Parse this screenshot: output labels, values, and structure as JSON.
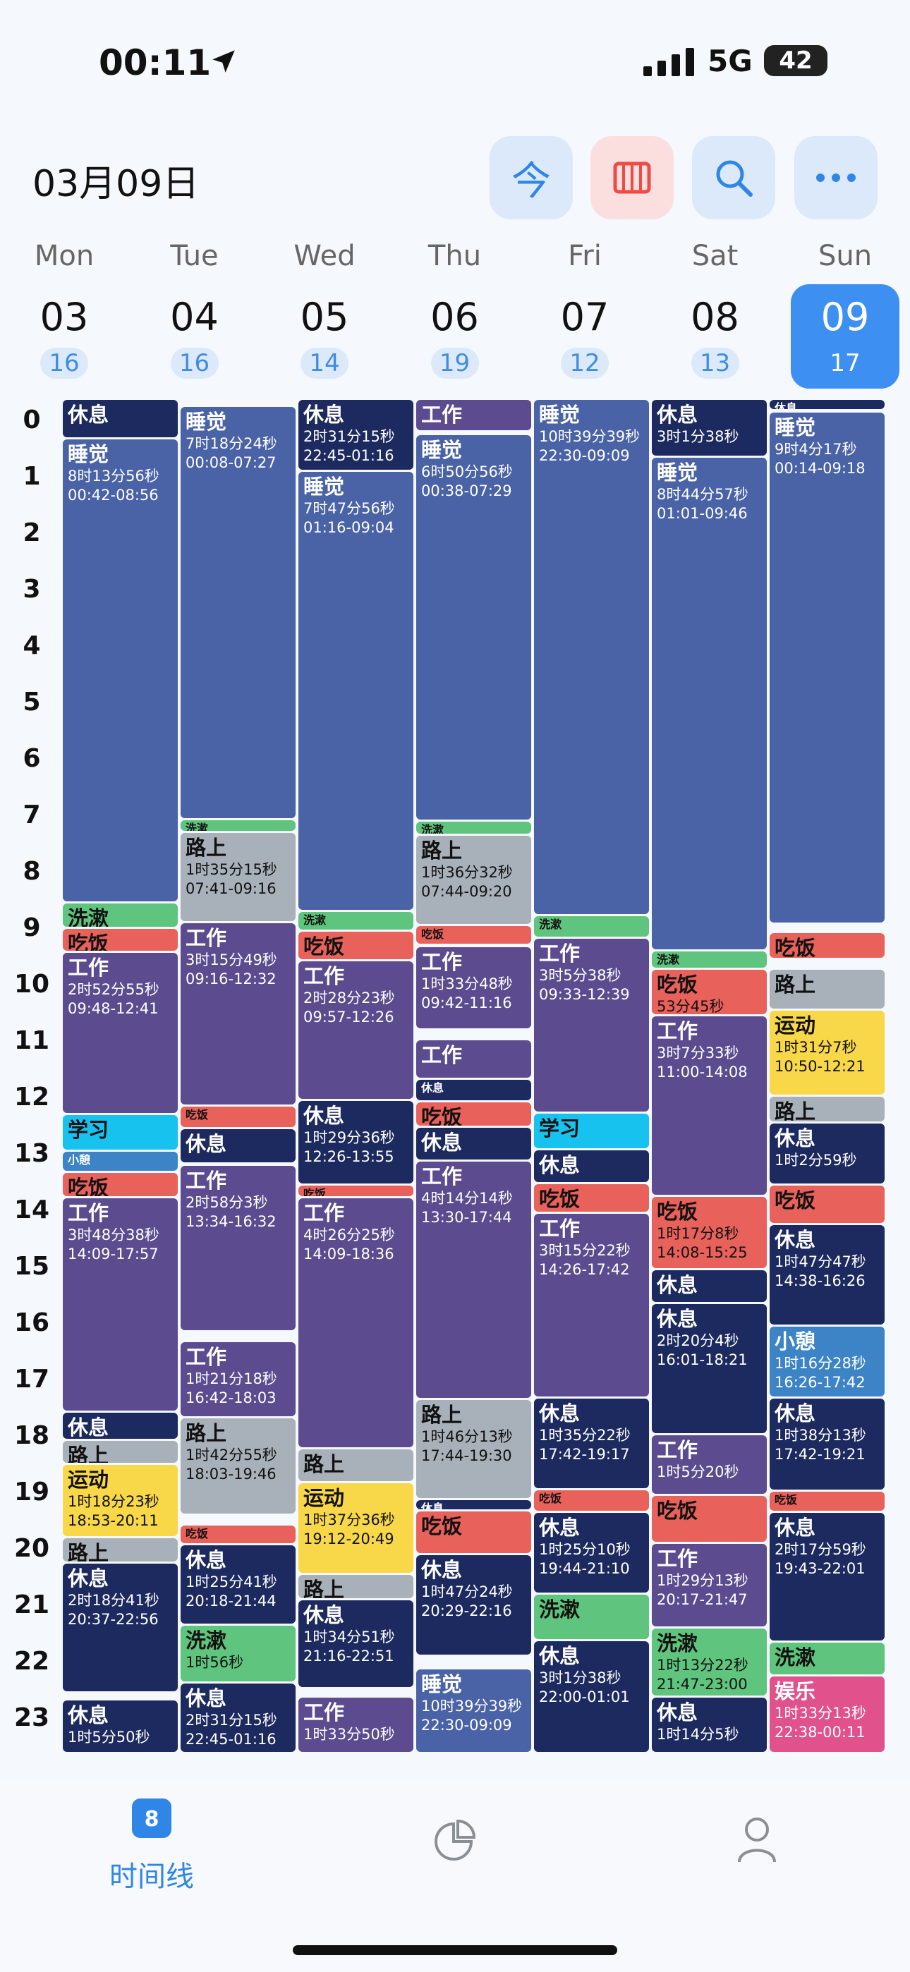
{
  "status": {
    "time": "00:11",
    "network": "5G",
    "battery": "42"
  },
  "header": {
    "date": "03月09日",
    "today_button": "今"
  },
  "selected_day": 6,
  "days": [
    {
      "name": "Mon",
      "date": "03",
      "count": 16,
      "events": [
        {
          "title": "休息",
          "color": "#1d2a5f"
        },
        {
          "title": "睡觉",
          "duration": "8时13分56秒",
          "time": "00:42-08:56",
          "color": "#4a62a6"
        },
        {
          "title": "洗漱",
          "color": "#5fc47d"
        },
        {
          "title": "吃饭",
          "color": "#e9615b"
        },
        {
          "title": "工作",
          "duration": "2时52分55秒",
          "time": "09:48-12:41",
          "color": "#5d4b8f"
        },
        {
          "title": "学习",
          "color": "#17c3ee"
        },
        {
          "title": "小憩",
          "color": "#3d84c6"
        },
        {
          "title": "吃饭",
          "color": "#e9615b"
        },
        {
          "title": "工作",
          "duration": "3时48分38秒",
          "time": "14:09-17:57",
          "color": "#5d4b8f"
        },
        {
          "title": "休息",
          "color": "#1d2a5f"
        },
        {
          "title": "路上",
          "color": "#a8b0b9"
        },
        {
          "title": "运动",
          "duration": "1时18分23秒",
          "time": "18:53-20:11",
          "color": "#f8d848"
        },
        {
          "title": "路上",
          "color": "#a8b0b9"
        },
        {
          "title": "休息",
          "duration": "2时18分41秒",
          "time": "20:37-22:56",
          "color": "#1d2a5f"
        },
        {
          "title": "休息",
          "duration": "1时5分50秒",
          "color": "#1d2a5f"
        }
      ]
    },
    {
      "name": "Tue",
      "date": "04",
      "count": 16,
      "events": [
        {
          "title": "睡觉",
          "duration": "7时18分24秒",
          "time": "00:08-07:27",
          "color": "#4a62a6"
        },
        {
          "title": "洗漱",
          "color": "#5fc47d"
        },
        {
          "title": "路上",
          "duration": "1时35分15秒",
          "time": "07:41-09:16",
          "color": "#a8b0b9"
        },
        {
          "title": "工作",
          "duration": "3时15分49秒",
          "time": "09:16-12:32",
          "color": "#5d4b8f"
        },
        {
          "title": "吃饭",
          "color": "#e9615b"
        },
        {
          "title": "休息",
          "color": "#1d2a5f"
        },
        {
          "title": "工作",
          "duration": "2时58分3秒",
          "time": "13:34-16:32",
          "color": "#5d4b8f"
        },
        {
          "title": "工作",
          "duration": "1时21分18秒",
          "time": "16:42-18:03",
          "color": "#5d4b8f"
        },
        {
          "title": "路上",
          "duration": "1时42分55秒",
          "time": "18:03-19:46",
          "color": "#a8b0b9"
        },
        {
          "title": "吃饭",
          "color": "#e9615b"
        },
        {
          "title": "休息",
          "duration": "1时25分41秒",
          "time": "20:18-21:44",
          "color": "#1d2a5f"
        },
        {
          "title": "洗漱",
          "duration": "1时56秒",
          "color": "#5fc47d"
        },
        {
          "title": "休息",
          "duration": "2时31分15秒",
          "time": "22:45-01:16",
          "color": "#1d2a5f"
        }
      ]
    },
    {
      "name": "Wed",
      "date": "05",
      "count": 14,
      "events": [
        {
          "title": "休息",
          "duration": "2时31分15秒",
          "time": "22:45-01:16",
          "color": "#1d2a5f"
        },
        {
          "title": "睡觉",
          "duration": "7时47分56秒",
          "time": "01:16-09:04",
          "color": "#4a62a6"
        },
        {
          "title": "洗漱",
          "color": "#5fc47d"
        },
        {
          "title": "吃饭",
          "color": "#e9615b"
        },
        {
          "title": "工作",
          "duration": "2时28分23秒",
          "time": "09:57-12:26",
          "color": "#5d4b8f"
        },
        {
          "title": "休息",
          "duration": "1时29分36秒",
          "time": "12:26-13:55",
          "color": "#1d2a5f"
        },
        {
          "title": "吃饭",
          "color": "#e9615b"
        },
        {
          "title": "工作",
          "duration": "4时26分25秒",
          "time": "14:09-18:36",
          "color": "#5d4b8f"
        },
        {
          "title": "路上",
          "color": "#a8b0b9"
        },
        {
          "title": "运动",
          "duration": "1时37分36秒",
          "time": "19:12-20:49",
          "color": "#f8d848"
        },
        {
          "title": "路上",
          "color": "#a8b0b9"
        },
        {
          "title": "休息",
          "duration": "1时34分51秒",
          "time": "21:16-22:51",
          "color": "#1d2a5f"
        },
        {
          "title": "工作",
          "duration": "1时33分50秒",
          "color": "#5d4b8f"
        }
      ]
    },
    {
      "name": "Thu",
      "date": "06",
      "count": 19,
      "events": [
        {
          "title": "工作",
          "color": "#5d4b8f"
        },
        {
          "title": "睡觉",
          "duration": "6时50分56秒",
          "time": "00:38-07:29",
          "color": "#4a62a6"
        },
        {
          "title": "洗漱",
          "color": "#5fc47d"
        },
        {
          "title": "路上",
          "duration": "1时36分32秒",
          "time": "07:44-09:20",
          "color": "#a8b0b9"
        },
        {
          "title": "吃饭",
          "color": "#e9615b"
        },
        {
          "title": "工作",
          "duration": "1时33分48秒",
          "time": "09:42-11:16",
          "color": "#5d4b8f"
        },
        {
          "title": "工作",
          "color": "#5d4b8f"
        },
        {
          "title": "休息",
          "color": "#1d2a5f"
        },
        {
          "title": "吃饭",
          "color": "#e9615b"
        },
        {
          "title": "休息",
          "color": "#1d2a5f"
        },
        {
          "title": "工作",
          "duration": "4时14分14秒",
          "time": "13:30-17:44",
          "color": "#5d4b8f"
        },
        {
          "title": "路上",
          "duration": "1时46分13秒",
          "time": "17:44-19:30",
          "color": "#a8b0b9"
        },
        {
          "title": "休息",
          "color": "#1d2a5f"
        },
        {
          "title": "吃饭",
          "color": "#e9615b"
        },
        {
          "title": "休息",
          "duration": "1时47分24秒",
          "time": "20:29-22:16",
          "color": "#1d2a5f"
        },
        {
          "title": "睡觉",
          "duration": "10时39分39秒",
          "time": "22:30-09:09",
          "color": "#4a62a6"
        }
      ]
    },
    {
      "name": "Fri",
      "date": "07",
      "count": 12,
      "events": [
        {
          "title": "睡觉",
          "duration": "10时39分39秒",
          "time": "22:30-09:09",
          "color": "#4a62a6"
        },
        {
          "title": "洗漱",
          "color": "#5fc47d"
        },
        {
          "title": "工作",
          "duration": "3时5分38秒",
          "time": "09:33-12:39",
          "color": "#5d4b8f"
        },
        {
          "title": "学习",
          "color": "#17c3ee"
        },
        {
          "title": "休息",
          "color": "#1d2a5f"
        },
        {
          "title": "吃饭",
          "color": "#e9615b"
        },
        {
          "title": "工作",
          "duration": "3时15分22秒",
          "time": "14:26-17:42",
          "color": "#5d4b8f"
        },
        {
          "title": "休息",
          "duration": "1时35分22秒",
          "time": "17:42-19:17",
          "color": "#1d2a5f"
        },
        {
          "title": "吃饭",
          "color": "#e9615b"
        },
        {
          "title": "休息",
          "duration": "1时25分10秒",
          "time": "19:44-21:10",
          "color": "#1d2a5f"
        },
        {
          "title": "洗漱",
          "color": "#5fc47d"
        },
        {
          "title": "休息",
          "duration": "3时1分38秒",
          "time": "22:00-01:01",
          "color": "#1d2a5f"
        }
      ]
    },
    {
      "name": "Sat",
      "date": "08",
      "count": 13,
      "events": [
        {
          "title": "休息",
          "duration": "3时1分38秒",
          "color": "#1d2a5f"
        },
        {
          "title": "睡觉",
          "duration": "8时44分57秒",
          "time": "01:01-09:46",
          "color": "#4a62a6"
        },
        {
          "title": "洗漱",
          "color": "#5fc47d"
        },
        {
          "title": "吃饭",
          "duration": "53分45秒",
          "color": "#e9615b"
        },
        {
          "title": "工作",
          "duration": "3时7分33秒",
          "time": "11:00-14:08",
          "color": "#5d4b8f"
        },
        {
          "title": "吃饭",
          "duration": "1时17分8秒",
          "time": "14:08-15:25",
          "color": "#e9615b"
        },
        {
          "title": "休息",
          "color": "#1d2a5f"
        },
        {
          "title": "休息",
          "duration": "2时20分4秒",
          "time": "16:01-18:21",
          "color": "#1d2a5f"
        },
        {
          "title": "工作",
          "duration": "1时5分20秒",
          "color": "#5d4b8f"
        },
        {
          "title": "吃饭",
          "color": "#e9615b"
        },
        {
          "title": "工作",
          "duration": "1时29分13秒",
          "time": "20:17-21:47",
          "color": "#5d4b8f"
        },
        {
          "title": "洗漱",
          "duration": "1时13分22秒",
          "time": "21:47-23:00",
          "color": "#5fc47d"
        },
        {
          "title": "休息",
          "duration": "1时14分5秒",
          "color": "#1d2a5f"
        }
      ]
    },
    {
      "name": "Sun",
      "date": "09",
      "count": 17,
      "events": [
        {
          "title": "休息",
          "color": "#1d2a5f"
        },
        {
          "title": "睡觉",
          "duration": "9时4分17秒",
          "time": "00:14-09:18",
          "color": "#4a62a6"
        },
        {
          "title": "吃饭",
          "color": "#e9615b"
        },
        {
          "title": "路上",
          "color": "#a8b0b9"
        },
        {
          "title": "运动",
          "duration": "1时31分7秒",
          "time": "10:50-12:21",
          "color": "#f8d848"
        },
        {
          "title": "路上",
          "color": "#a8b0b9"
        },
        {
          "title": "休息",
          "duration": "1时2分59秒",
          "color": "#1d2a5f"
        },
        {
          "title": "吃饭",
          "color": "#e9615b"
        },
        {
          "title": "休息",
          "duration": "1时47分47秒",
          "time": "14:38-16:26",
          "color": "#1d2a5f"
        },
        {
          "title": "小憩",
          "duration": "1时16分28秒",
          "time": "16:26-17:42",
          "color": "#3d84c6"
        },
        {
          "title": "休息",
          "duration": "1时38分13秒",
          "time": "17:42-19:21",
          "color": "#1d2a5f"
        },
        {
          "title": "吃饭",
          "color": "#e9615b"
        },
        {
          "title": "休息",
          "duration": "2时17分59秒",
          "time": "19:43-22:01",
          "color": "#1d2a5f"
        },
        {
          "title": "洗漱",
          "color": "#5fc47d"
        },
        {
          "title": "娱乐",
          "duration": "1时33分13秒",
          "time": "22:38-00:11",
          "color": "#e1518c"
        }
      ]
    }
  ],
  "hours": [
    0,
    1,
    2,
    3,
    4,
    5,
    6,
    7,
    8,
    9,
    10,
    11,
    12,
    13,
    14,
    15,
    16,
    17,
    18,
    19,
    20,
    21,
    22,
    23
  ],
  "tabbar": {
    "badge": "8",
    "active_label": "时间线"
  }
}
